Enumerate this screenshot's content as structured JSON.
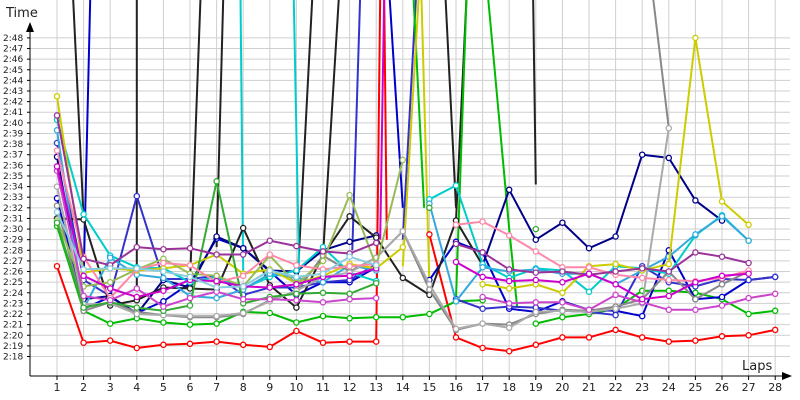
{
  "chart_data": {
    "type": "line",
    "ylabel": "Time",
    "xlabel": "Laps",
    "x": [
      1,
      2,
      3,
      4,
      5,
      6,
      7,
      8,
      9,
      10,
      11,
      12,
      13,
      14,
      15,
      16,
      17,
      18,
      19,
      20,
      21,
      22,
      23,
      24,
      25,
      26,
      27,
      28
    ],
    "ylim_seconds": [
      137,
      168
    ],
    "y_tick_labels": [
      "2:18",
      "2:19",
      "2:20",
      "2:21",
      "2:22",
      "2:23",
      "2:24",
      "2:25",
      "2:26",
      "2:27",
      "2:28",
      "2:29",
      "2:30",
      "2:31",
      "2:32",
      "2:33",
      "2:34",
      "2:35",
      "2:36",
      "2:37",
      "2:38",
      "2:39",
      "2:40",
      "2:41",
      "2:42",
      "2:43",
      "2:44",
      "2:45",
      "2:46",
      "2:47",
      "2:48"
    ],
    "grid": true,
    "series": [
      {
        "color": "#ff0000",
        "values": [
          146.5,
          139.3,
          139.5,
          138.8,
          139.1,
          139.2,
          139.4,
          139.1,
          138.9,
          140.4,
          139.3,
          139.4,
          139.4,
          null,
          149.5,
          139.8,
          138.8,
          138.5,
          139.1,
          139.8,
          139.8,
          140.5,
          139.8,
          139.4,
          139.5,
          139.9,
          140.0,
          140.5
        ]
      },
      {
        "color": "#00bb00",
        "values": [
          150.3,
          142.3,
          141.1,
          141.6,
          141.2,
          141.0,
          141.1,
          142.2,
          142.1,
          141.2,
          141.8,
          141.6,
          141.7,
          141.7,
          142.0,
          143.2,
          143.3,
          null,
          141.1,
          141.7,
          142.0,
          142.5,
          144.2,
          144.2,
          144.0,
          143.4,
          142.0,
          142.3
        ]
      },
      {
        "color": "#0000cc",
        "values": [
          152.9,
          142.5,
          143.6,
          142.1,
          143.2,
          144.9,
          149.1,
          148.2,
          146.0,
          143.8,
          145.0,
          145.0,
          146.4,
          null,
          145.2,
          148.8,
          147.8,
          142.5,
          142.2,
          143.2,
          142.4,
          142.3,
          141.8,
          148.0,
          143.4,
          143.6,
          145.2,
          145.5
        ]
      },
      {
        "color": "#3333cc",
        "values": [
          158.1,
          145.2,
          143.7,
          153.1,
          145.3,
          145.3,
          145.6,
          143.8,
          144.5,
          144.5,
          145.0,
          145.2,
          146.7,
          null,
          null,
          143.4,
          142.5,
          142.7,
          142.6,
          142.3,
          142.2,
          141.9,
          146.5,
          145.0,
          144.6,
          145.3,
          145.2,
          145.5
        ]
      },
      {
        "color": "#000088",
        "values": [
          156.8,
          143.4,
          143.7,
          142.0,
          145.2,
          144.5,
          149.3,
          148.2,
          146.1,
          146.0,
          148.0,
          148.8,
          149.4,
          null,
          null,
          null,
          146.6,
          153.7,
          149.0,
          150.6,
          148.2,
          149.3,
          157.0,
          156.7,
          152.7,
          150.8,
          null,
          null
        ]
      },
      {
        "color": "#222222",
        "values": [
          151.0,
          150.9,
          142.8,
          143.3,
          144.5,
          144.4,
          144.3,
          150.1,
          144.7,
          142.6,
          147.5,
          151.2,
          149.2,
          145.4,
          143.8,
          150.8,
          146.6,
          null,
          null,
          null,
          null,
          null,
          null,
          null,
          null,
          null,
          null,
          null
        ]
      },
      {
        "color": "#00cccc",
        "values": [
          160.3,
          151.4,
          147.5,
          146.4,
          146.3,
          145.0,
          145.5,
          144.4,
          145.5,
          146.1,
          148.3,
          145.9,
          145.1,
          null,
          152.8,
          154.1,
          146.7,
          145.4,
          146.3,
          146.1,
          144.1,
          146.5,
          146.3,
          145.8,
          149.4,
          151.3,
          148.9,
          null
        ]
      },
      {
        "color": "#33aadd",
        "values": [
          159.3,
          142.5,
          147.3,
          145.7,
          145.4,
          143.7,
          143.5,
          144.3,
          145.8,
          145.4,
          145.0,
          146.6,
          146.1,
          null,
          152.4,
          143.2,
          146.4,
          146.0,
          146.2,
          145.8,
          145.8,
          144.8,
          146.1,
          147.4,
          149.5,
          151.2,
          148.9,
          null
        ]
      },
      {
        "color": "#cccc00",
        "values": [
          162.5,
          145.9,
          146.3,
          146.1,
          146.3,
          146.6,
          147.6,
          145.8,
          146.2,
          144.9,
          145.6,
          146.7,
          146.3,
          148.3,
          null,
          null,
          144.8,
          144.4,
          144.8,
          144.0,
          146.5,
          146.7,
          146.1,
          146.7,
          168.0,
          152.6,
          150.4,
          null
        ]
      },
      {
        "color": "#888888",
        "values": [
          152.2,
          142.3,
          143.1,
          142.2,
          141.9,
          141.7,
          141.7,
          142.0,
          143.3,
          144.1,
          147.5,
          146.0,
          147.3,
          149.8,
          144.3,
          140.5,
          141.1,
          141.0,
          142.0,
          142.4,
          142.3,
          142.7,
          143.4,
          146.0,
          143.4,
          144.8,
          146.0,
          null
        ]
      },
      {
        "color": "#aaaaaa",
        "values": [
          154.0,
          142.9,
          143.0,
          142.0,
          141.9,
          141.8,
          141.8,
          142.1,
          143.2,
          144.2,
          145.5,
          145.9,
          147.3,
          149.8,
          144.8,
          140.6,
          141.1,
          140.7,
          142.2,
          142.3,
          142.2,
          142.5,
          143.0,
          159.5,
          null,
          null,
          null,
          null
        ]
      },
      {
        "color": "#99bb55",
        "values": [
          150.8,
          144.6,
          145.0,
          146.2,
          147.2,
          145.8,
          145.6,
          144.6,
          147.5,
          144.8,
          147.0,
          153.2,
          146.5,
          156.5,
          null,
          null,
          null,
          null,
          null,
          null,
          null,
          null,
          null,
          null,
          null,
          null,
          null,
          null
        ]
      },
      {
        "color": "#33aa33",
        "values": [
          150.6,
          142.6,
          143.1,
          142.6,
          142.3,
          142.8,
          154.5,
          143.0,
          143.6,
          143.9,
          144.0,
          143.9,
          144.9,
          null,
          152.0,
          null,
          null,
          null,
          150.0,
          null,
          null,
          null,
          null,
          null,
          null,
          null,
          null,
          null
        ]
      },
      {
        "color": "#ff88aa",
        "values": [
          157.4,
          147.4,
          143.5,
          146.2,
          146.8,
          146.6,
          145.0,
          145.6,
          147.6,
          146.6,
          146.2,
          146.5,
          146.7,
          null,
          null,
          150.4,
          150.7,
          149.4,
          147.9,
          146.4,
          146.4,
          145.7,
          145.4,
          145.2,
          145.1,
          145.4,
          146.1,
          null
        ]
      },
      {
        "color": "#993399",
        "values": [
          160.7,
          147.2,
          146.6,
          148.3,
          148.1,
          148.2,
          147.6,
          147.6,
          148.9,
          148.4,
          147.9,
          147.7,
          148.7,
          null,
          null,
          148.6,
          147.8,
          146.2,
          145.9,
          146.0,
          145.7,
          146.0,
          146.3,
          146.0,
          147.8,
          147.4,
          146.8,
          null
        ]
      },
      {
        "color": "#cc44cc",
        "values": [
          155.5,
          143.7,
          143.3,
          144.4,
          142.7,
          143.5,
          144.1,
          143.4,
          143.4,
          143.3,
          143.1,
          143.4,
          143.5,
          null,
          null,
          null,
          143.6,
          143.0,
          143.1,
          143.1,
          142.4,
          143.8,
          143.1,
          142.4,
          142.4,
          142.8,
          143.5,
          143.9
        ]
      },
      {
        "color": "#cc00cc",
        "values": [
          155.9,
          145.6,
          144.4,
          143.6,
          144.2,
          145.2,
          145.1,
          144.6,
          144.5,
          144.8,
          145.5,
          145.6,
          146.3,
          null,
          null,
          146.9,
          145.5,
          145.1,
          145.2,
          145.0,
          145.8,
          144.8,
          143.4,
          143.7,
          145.0,
          145.6,
          145.8,
          null
        ]
      },
      {
        "color": "#88ccdd",
        "values": [
          151.6,
          146.2,
          146.3,
          146.3,
          146.0,
          145.5,
          144.5,
          144.6,
          146.1,
          145.5,
          145.8,
          147.4,
          146.6,
          null,
          null,
          null,
          null,
          null,
          null,
          null,
          null,
          null,
          null,
          null,
          null,
          null,
          null,
          null
        ]
      }
    ],
    "spikes": [
      {
        "color": "#222222",
        "points": [
          [
            2,
            151.0
          ],
          [
            1.6,
            172
          ]
        ]
      },
      {
        "color": "#0000cc",
        "points": [
          [
            2,
            145.2
          ],
          [
            2.25,
            172
          ]
        ]
      },
      {
        "color": "#222222",
        "points": [
          [
            4,
            144.4
          ],
          [
            4.0,
            172
          ]
        ]
      },
      {
        "color": "#222222",
        "points": [
          [
            6,
            145.0
          ],
          [
            6.4,
            172
          ]
        ]
      },
      {
        "color": "#222222",
        "points": [
          [
            7,
            148.3
          ],
          [
            7.25,
            172
          ]
        ]
      },
      {
        "color": "#00cccc",
        "points": [
          [
            7.9,
            172
          ],
          [
            8.0,
            146.0
          ]
        ]
      },
      {
        "color": "#222222",
        "points": [
          [
            10,
            143.0
          ],
          [
            10.6,
            172
          ]
        ]
      },
      {
        "color": "#00cccc",
        "points": [
          [
            9.9,
            172
          ],
          [
            10.1,
            146.0
          ]
        ]
      },
      {
        "color": "#222222",
        "points": [
          [
            11,
            147.5
          ],
          [
            11.6,
            172
          ]
        ]
      },
      {
        "color": "#3333cc",
        "points": [
          [
            12.1,
            148.0
          ],
          [
            12.4,
            172
          ]
        ]
      },
      {
        "color": "#ff0000",
        "points": [
          [
            13,
            139.4
          ],
          [
            13.15,
            172
          ],
          [
            13.3,
            172
          ],
          [
            13.4,
            149.0
          ]
        ]
      },
      {
        "color": "#cc00cc",
        "points": [
          [
            13.15,
            149.0
          ],
          [
            13.3,
            172
          ]
        ]
      },
      {
        "color": "#0000cc",
        "points": [
          [
            13.5,
            172
          ],
          [
            14.0,
            152.0
          ]
        ]
      },
      {
        "color": "#3333cc",
        "points": [
          [
            14,
            149.0
          ],
          [
            14.5,
            172
          ]
        ]
      },
      {
        "color": "#00bb00",
        "points": [
          [
            14.4,
            172
          ],
          [
            14.8,
            152.0
          ]
        ]
      },
      {
        "color": "#cccc00",
        "points": [
          [
            14,
            146.5
          ],
          [
            14.6,
            172
          ],
          [
            14.7,
            172
          ],
          [
            15,
            144.8
          ]
        ]
      },
      {
        "color": "#222222",
        "points": [
          [
            16,
            150.8
          ],
          [
            16.4,
            172
          ]
        ]
      },
      {
        "color": "#00bb00",
        "points": [
          [
            16,
            143.5
          ],
          [
            16.4,
            172
          ]
        ]
      },
      {
        "color": "#00bb00",
        "points": [
          [
            17.2,
            172
          ],
          [
            18,
            150.0
          ],
          [
            18.3,
            142.6
          ]
        ]
      },
      {
        "color": "#222222",
        "points": [
          [
            18.9,
            172
          ],
          [
            19,
            154.2
          ]
        ]
      },
      {
        "color": "#888888",
        "points": [
          [
            23.4,
            172
          ],
          [
            24,
            159.5
          ]
        ]
      },
      {
        "color": "#222222",
        "points": [
          [
            15.6,
            172
          ],
          [
            16,
            152.0
          ]
        ]
      }
    ]
  }
}
